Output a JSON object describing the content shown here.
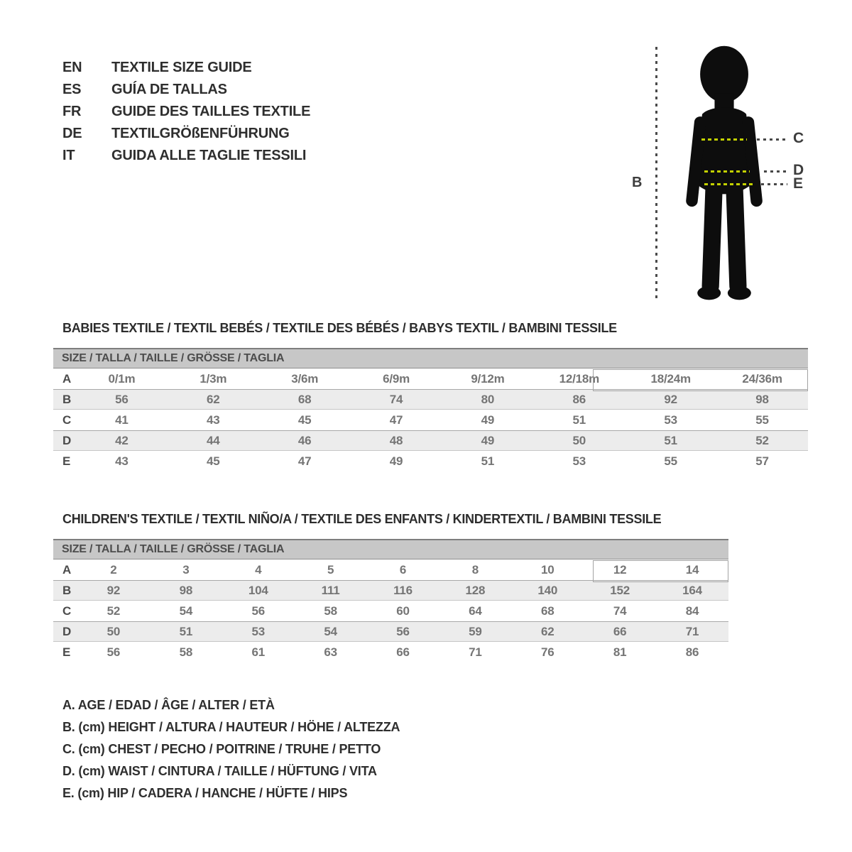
{
  "languages": [
    {
      "code": "EN",
      "label": "TEXTILE SIZE GUIDE"
    },
    {
      "code": "ES",
      "label": "GUÍA DE TALLAS"
    },
    {
      "code": "FR",
      "label": "GUIDE DES TAILLES TEXTILE"
    },
    {
      "code": "DE",
      "label": "TEXTILGRÖßENFÜHRUNG"
    },
    {
      "code": "IT",
      "label": "GUIDA ALLE TAGLIE TESSILI"
    }
  ],
  "figure": {
    "labels": {
      "height": "B",
      "chest": "C",
      "waist": "D",
      "hip": "E"
    }
  },
  "colors": {
    "accent_green": "#c3d100",
    "silhouette": "#0d0d0d",
    "band_gray": "#c7c7c7",
    "stripe_gray": "#ececec",
    "text_dark": "#2d2d2d",
    "value_gray": "#757575"
  },
  "babies": {
    "title": "BABIES TEXTILE / TEXTIL BEBÉS / TEXTILE DES BÉBÉS / BABYS TEXTIL  / BAMBINI TESSILE",
    "size_header": "SIZE / TALLA / TAILLE / GRÖSSE / TAGLIA",
    "rows": [
      {
        "label": "A",
        "values": [
          "0/1m",
          "1/3m",
          "3/6m",
          "6/9m",
          "9/12m",
          "12/18m",
          "18/24m",
          "24/36m"
        ]
      },
      {
        "label": "B",
        "values": [
          "56",
          "62",
          "68",
          "74",
          "80",
          "86",
          "92",
          "98"
        ]
      },
      {
        "label": "C",
        "values": [
          "41",
          "43",
          "45",
          "47",
          "49",
          "51",
          "53",
          "55"
        ]
      },
      {
        "label": "D",
        "values": [
          "42",
          "44",
          "46",
          "48",
          "49",
          "50",
          "51",
          "52"
        ]
      },
      {
        "label": "E",
        "values": [
          "43",
          "45",
          "47",
          "49",
          "51",
          "53",
          "55",
          "57"
        ]
      }
    ]
  },
  "children": {
    "title": "CHILDREN'S TEXTILE / TEXTIL NIÑO/A / TEXTILE DES ENFANTS / KINDERTEXTIL / BAMBINI TESSILE",
    "size_header": "SIZE / TALLA / TAILLE / GRÖSSE / TAGLIA",
    "rows": [
      {
        "label": "A",
        "values": [
          "2",
          "3",
          "4",
          "5",
          "6",
          "8",
          "10",
          "12",
          "14"
        ]
      },
      {
        "label": "B",
        "values": [
          "92",
          "98",
          "104",
          "111",
          "116",
          "128",
          "140",
          "152",
          "164"
        ]
      },
      {
        "label": "C",
        "values": [
          "52",
          "54",
          "56",
          "58",
          "60",
          "64",
          "68",
          "74",
          "84"
        ]
      },
      {
        "label": "D",
        "values": [
          "50",
          "51",
          "53",
          "54",
          "56",
          "59",
          "62",
          "66",
          "71"
        ]
      },
      {
        "label": "E",
        "values": [
          "56",
          "58",
          "61",
          "63",
          "66",
          "71",
          "76",
          "81",
          "86"
        ]
      }
    ]
  },
  "legend": [
    "A. AGE / EDAD / ÂGE / ALTER / ETÀ",
    "B. (cm) HEIGHT / ALTURA / HAUTEUR / HÖHE / ALTEZZA",
    "C. (cm) CHEST / PECHO / POITRINE / TRUHE / PETTO",
    "D. (cm) WAIST / CINTURA / TAILLE / HÜFTUNG / VITA",
    "E. (cm) HIP / CADERA / HANCHE / HÜFTE / HIPS"
  ]
}
